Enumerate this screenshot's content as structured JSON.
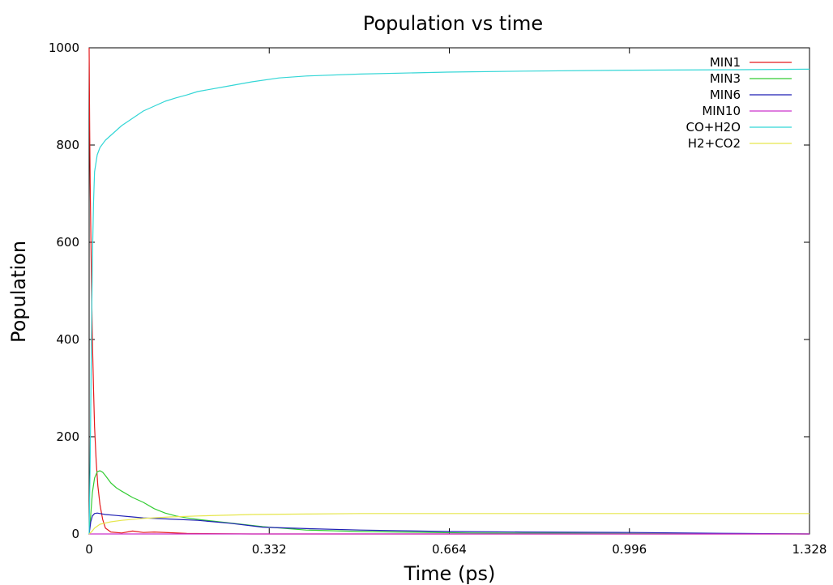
{
  "chart_data": {
    "type": "line",
    "title": "Population vs time",
    "xlabel": "Time (ps)",
    "ylabel": "Population",
    "xlim": [
      0,
      1.328
    ],
    "ylim": [
      0,
      1000
    ],
    "xticks": [
      0,
      0.332,
      0.664,
      0.996,
      1.328
    ],
    "xtick_labels": [
      "0",
      "0.332",
      "0.664",
      "0.996",
      "1.328"
    ],
    "yticks": [
      0,
      200,
      400,
      600,
      800,
      1000
    ],
    "ytick_labels": [
      "0",
      "200",
      "400",
      "600",
      "800",
      "1000"
    ],
    "grid": false,
    "legend": "top-right",
    "series": [
      {
        "name": "MIN1",
        "color": "#e41a1c",
        "x": [
          0,
          0.001,
          0.002,
          0.004,
          0.006,
          0.008,
          0.01,
          0.013,
          0.016,
          0.02,
          0.025,
          0.03,
          0.04,
          0.06,
          0.08,
          0.1,
          0.12,
          0.18,
          0.3,
          0.6,
          1.328
        ],
        "y": [
          1000,
          830,
          720,
          540,
          400,
          300,
          220,
          150,
          100,
          60,
          30,
          12,
          4,
          2,
          6,
          3,
          4,
          1,
          0,
          0,
          0
        ]
      },
      {
        "name": "MIN3",
        "color": "#33cc33",
        "x": [
          0,
          0.003,
          0.006,
          0.01,
          0.015,
          0.02,
          0.025,
          0.03,
          0.04,
          0.05,
          0.06,
          0.08,
          0.1,
          0.12,
          0.14,
          0.16,
          0.18,
          0.2,
          0.24,
          0.28,
          0.32,
          0.4,
          0.5,
          0.7,
          1.0,
          1.328
        ],
        "y": [
          0,
          40,
          85,
          115,
          128,
          130,
          127,
          120,
          105,
          95,
          88,
          75,
          65,
          52,
          43,
          37,
          33,
          30,
          25,
          20,
          15,
          8,
          5,
          2,
          1,
          0
        ]
      },
      {
        "name": "MIN6",
        "color": "#1f1fb4",
        "x": [
          0,
          0.003,
          0.006,
          0.01,
          0.015,
          0.02,
          0.03,
          0.05,
          0.08,
          0.1,
          0.14,
          0.2,
          0.26,
          0.32,
          0.4,
          0.5,
          0.66,
          0.8,
          1.0,
          1.2,
          1.328
        ],
        "y": [
          0,
          25,
          37,
          42,
          43,
          42,
          40,
          38,
          35,
          33,
          31,
          28,
          22,
          14,
          11,
          8,
          5,
          4,
          3,
          1,
          0
        ]
      },
      {
        "name": "MIN10",
        "color": "#cc33cc",
        "x": [
          0,
          0.5,
          1.0,
          1.328
        ],
        "y": [
          0,
          0,
          0,
          0
        ]
      },
      {
        "name": "CO+H2O",
        "color": "#33d6d6",
        "x": [
          0,
          0.002,
          0.004,
          0.006,
          0.008,
          0.01,
          0.015,
          0.02,
          0.03,
          0.04,
          0.05,
          0.06,
          0.08,
          0.1,
          0.12,
          0.14,
          0.16,
          0.18,
          0.2,
          0.25,
          0.3,
          0.35,
          0.4,
          0.5,
          0.66,
          0.8,
          1.0,
          1.2,
          1.328
        ],
        "y": [
          0,
          150,
          380,
          560,
          680,
          745,
          780,
          795,
          810,
          820,
          830,
          840,
          855,
          870,
          880,
          890,
          897,
          903,
          910,
          920,
          930,
          938,
          942,
          946,
          950,
          952,
          954,
          955,
          956
        ]
      },
      {
        "name": "H2+CO2",
        "color": "#e6e64c",
        "x": [
          0,
          0.005,
          0.01,
          0.02,
          0.04,
          0.06,
          0.1,
          0.15,
          0.2,
          0.3,
          0.4,
          0.5,
          0.66,
          1.0,
          1.328
        ],
        "y": [
          0,
          5,
          12,
          20,
          25,
          28,
          32,
          35,
          37,
          40,
          41,
          42,
          42,
          42,
          42
        ]
      }
    ]
  }
}
